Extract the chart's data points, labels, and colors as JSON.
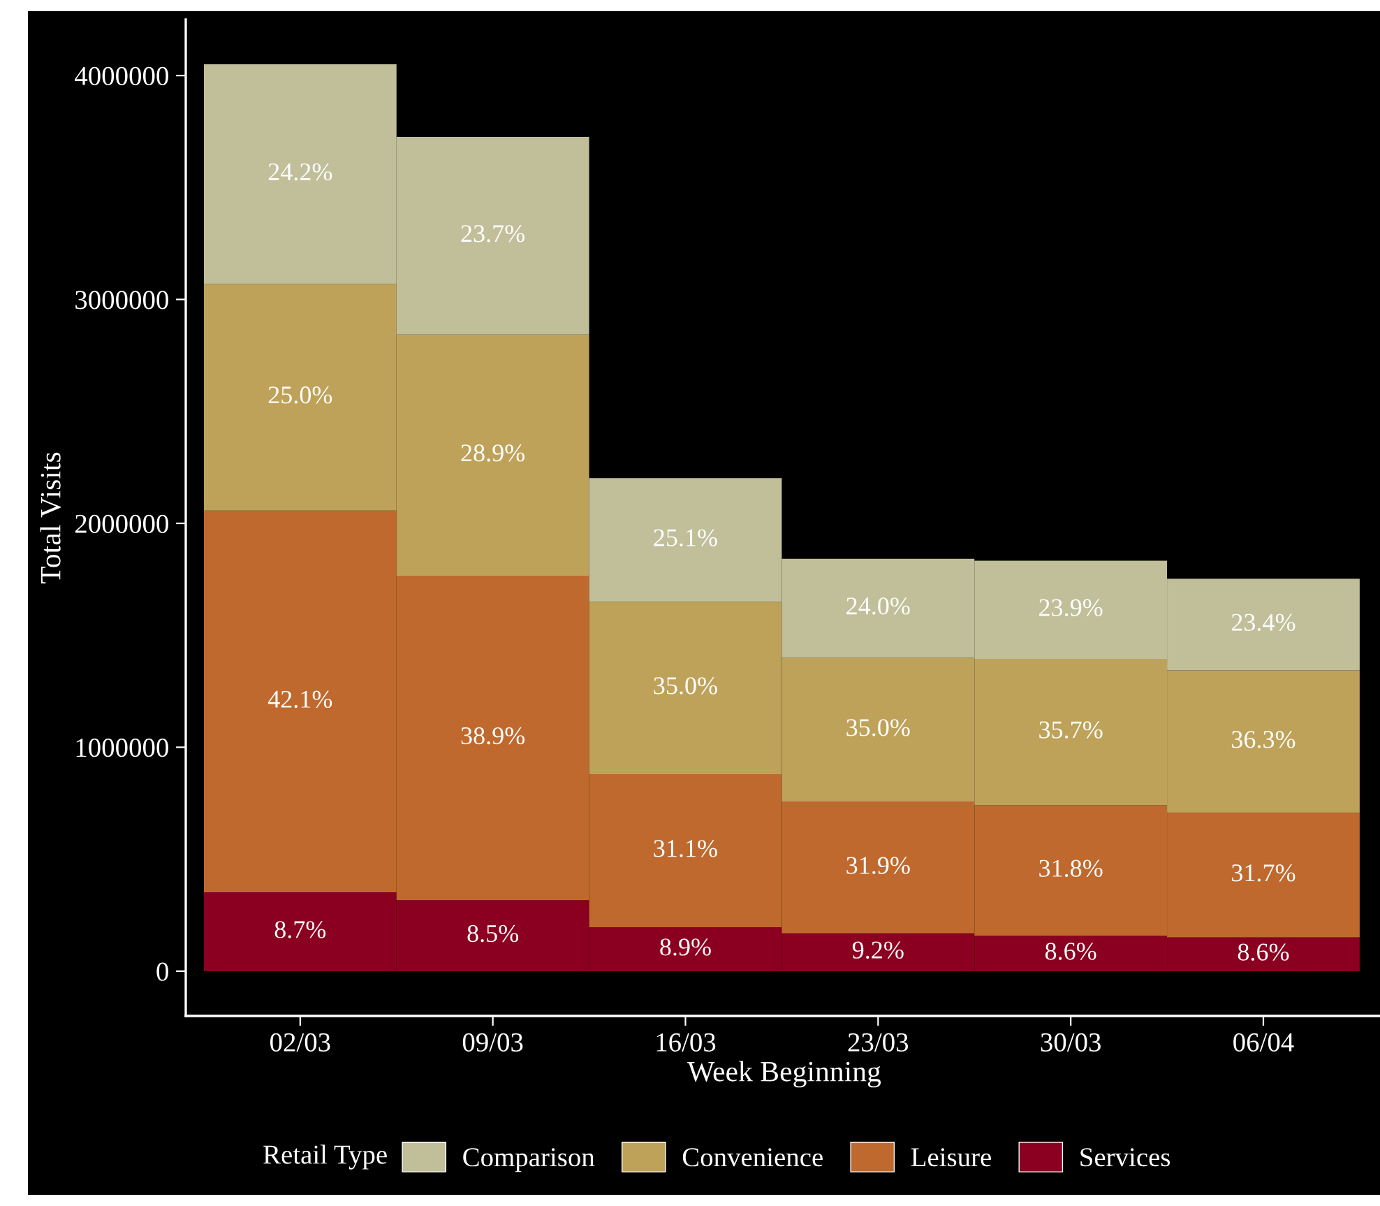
{
  "chart_data": {
    "type": "bar",
    "stacked": true,
    "xlabel": "Week Beginning",
    "ylabel": "Total Visits",
    "legend_title": "Retail Type",
    "legend": "bottom",
    "grid": false,
    "categories": [
      "02/03",
      "09/03",
      "16/03",
      "23/03",
      "30/03",
      "06/04"
    ],
    "ylim": [
      -200000,
      4250000
    ],
    "yticks": [
      0,
      1000000,
      2000000,
      3000000,
      4000000
    ],
    "series": [
      {
        "name": "Services",
        "color": "#8b0020",
        "values": [
          352000,
          317000,
          196000,
          169000,
          158000,
          151000
        ]
      },
      {
        "name": "Leisure",
        "color": "#bf692e",
        "values": [
          1705000,
          1449000,
          684000,
          587000,
          583000,
          556000
        ]
      },
      {
        "name": "Convenience",
        "color": "#bfa25a",
        "values": [
          1013000,
          1077000,
          770000,
          644000,
          654000,
          636000
        ]
      },
      {
        "name": "Comparison",
        "color": "#c0bf9a",
        "values": [
          980000,
          883000,
          552000,
          442000,
          438000,
          410000
        ]
      }
    ],
    "annotations": [
      "8.7%",
      "8.5%",
      "8.9%",
      "9.2%",
      "8.6%",
      "8.6%",
      "42.1%",
      "38.9%",
      "31.1%",
      "31.9%",
      "31.8%",
      "31.7%",
      "25.0%",
      "28.9%",
      "35.0%",
      "35.0%",
      "35.7%",
      "36.3%",
      "24.2%",
      "23.7%",
      "25.1%",
      "24.0%",
      "23.9%",
      "23.4%"
    ]
  }
}
